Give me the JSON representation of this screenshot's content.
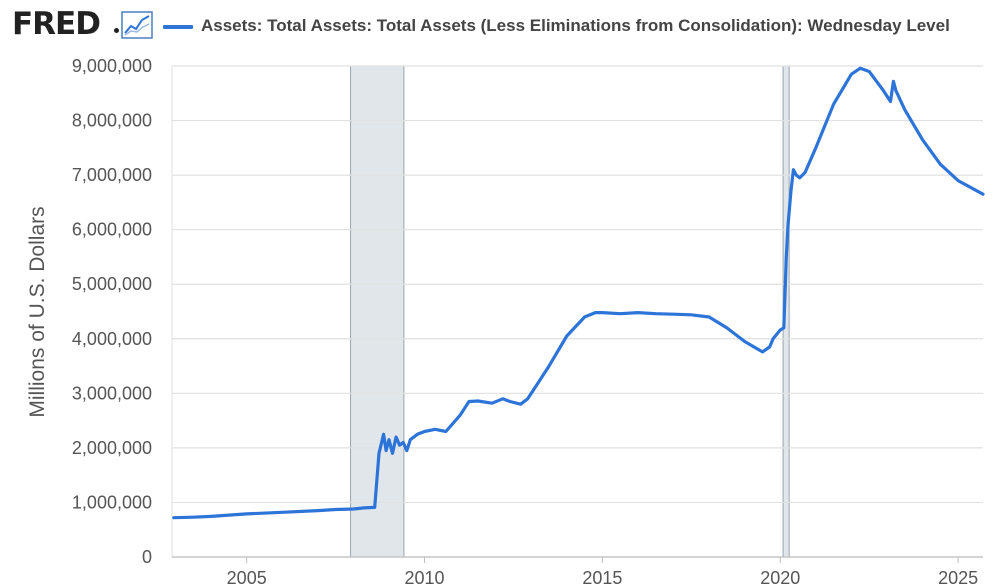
{
  "header": {
    "brand": "FRED",
    "brand_icon": "line-chart-icon",
    "legend_label": "Assets: Total Assets: Total Assets (Less Eliminations from Consolidation): Wednesday Level",
    "series_color": "#2d74d9"
  },
  "chart_data": {
    "type": "line",
    "title": "",
    "xlabel": "",
    "ylabel": "Millions of U.S. Dollars",
    "xlim": [
      2002.9,
      2025.7
    ],
    "ylim": [
      0,
      9000000
    ],
    "x_ticks": [
      2005,
      2010,
      2015,
      2020,
      2025
    ],
    "y_ticks": [
      0,
      1000000,
      2000000,
      3000000,
      4000000,
      5000000,
      6000000,
      7000000,
      8000000,
      9000000
    ],
    "y_tick_labels": [
      "0",
      "1,000,000",
      "2,000,000",
      "3,000,000",
      "4,000,000",
      "5,000,000",
      "6,000,000",
      "7,000,000",
      "8,000,000",
      "9,000,000"
    ],
    "x_tick_labels": [
      "2005",
      "2010",
      "2015",
      "2020",
      "2025"
    ],
    "grid": true,
    "recession_bands": [
      [
        2007.92,
        2009.42
      ],
      [
        2020.08,
        2020.25
      ]
    ],
    "recession_color": "#e1e6eb",
    "series": [
      {
        "name": "Assets: Total Assets: Total Assets (Less Eliminations from Consolidation): Wednesday Level",
        "color": "#2d74d9",
        "x": [
          2002.95,
          2003.5,
          2004.0,
          2005.0,
          2006.0,
          2007.0,
          2007.5,
          2008.0,
          2008.3,
          2008.6,
          2008.72,
          2008.85,
          2008.92,
          2009.0,
          2009.1,
          2009.2,
          2009.3,
          2009.4,
          2009.5,
          2009.6,
          2009.8,
          2010.0,
          2010.3,
          2010.6,
          2011.0,
          2011.25,
          2011.5,
          2011.9,
          2012.2,
          2012.4,
          2012.7,
          2012.9,
          2013.0,
          2013.5,
          2014.0,
          2014.5,
          2014.8,
          2015.0,
          2015.5,
          2016.0,
          2016.5,
          2017.0,
          2017.5,
          2018.0,
          2018.5,
          2019.0,
          2019.5,
          2019.7,
          2019.8,
          2020.0,
          2020.1,
          2020.17,
          2020.22,
          2020.3,
          2020.37,
          2020.45,
          2020.55,
          2020.7,
          2021.0,
          2021.5,
          2022.0,
          2022.25,
          2022.5,
          2022.9,
          2023.1,
          2023.18,
          2023.25,
          2023.5,
          2024.0,
          2024.5,
          2025.0,
          2025.7
        ],
        "values": [
          720000,
          730000,
          745000,
          790000,
          820000,
          850000,
          870000,
          880000,
          900000,
          910000,
          1900000,
          2250000,
          1950000,
          2150000,
          1900000,
          2200000,
          2050000,
          2100000,
          1950000,
          2150000,
          2250000,
          2300000,
          2340000,
          2300000,
          2600000,
          2850000,
          2860000,
          2820000,
          2900000,
          2850000,
          2800000,
          2900000,
          3000000,
          3500000,
          4050000,
          4400000,
          4480000,
          4480000,
          4460000,
          4480000,
          4460000,
          4450000,
          4440000,
          4400000,
          4200000,
          3950000,
          3760000,
          3850000,
          4000000,
          4160000,
          4200000,
          5500000,
          6100000,
          6700000,
          7100000,
          7000000,
          6950000,
          7050000,
          7500000,
          8300000,
          8850000,
          8960000,
          8900000,
          8550000,
          8350000,
          8720000,
          8550000,
          8200000,
          7650000,
          7200000,
          6900000,
          6650000
        ]
      }
    ]
  }
}
